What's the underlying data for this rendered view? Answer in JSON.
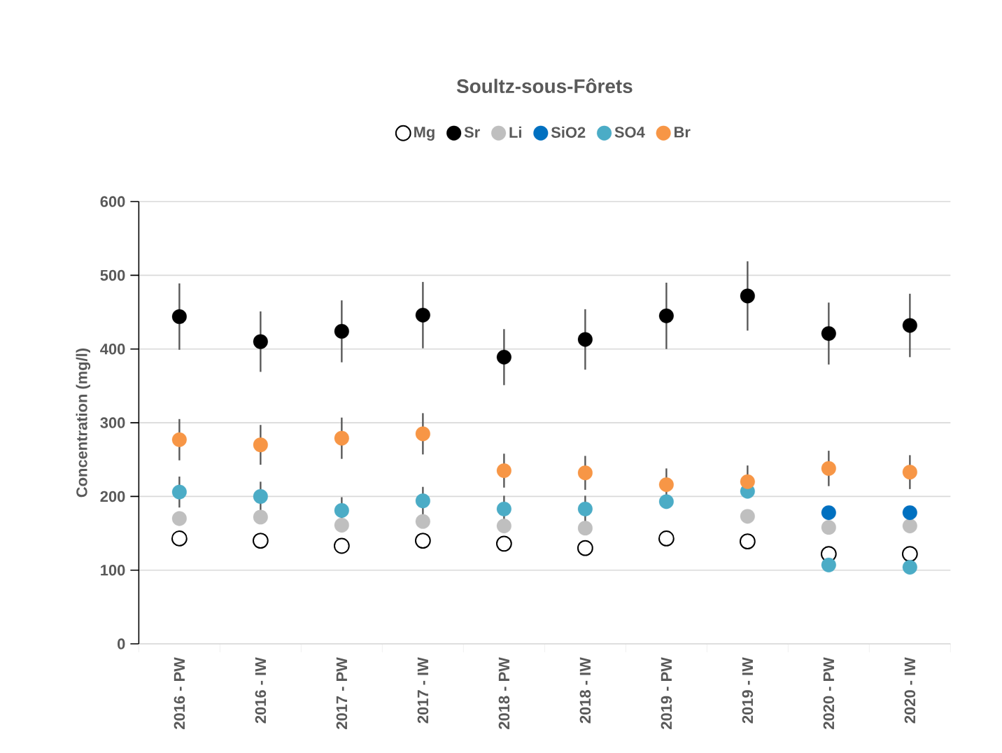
{
  "chart_data": {
    "type": "scatter",
    "title": "Soultz-sous-Fôrets",
    "ylabel": "Concentration (mg/l)",
    "categories": [
      "2016 - PW",
      "2016 - IW",
      "2017 - PW",
      "2017 - IW",
      "2018 - PW",
      "2018 - IW",
      "2019 - PW",
      "2019 - IW",
      "2020 - PW",
      "2020 - IW"
    ],
    "series": [
      {
        "name": "Mg",
        "color": "#000000",
        "marker": "open circle",
        "values": [
          143,
          140,
          133,
          140,
          136,
          130,
          143,
          139,
          122,
          122
        ]
      },
      {
        "name": "Sr",
        "color": "#000000",
        "values": [
          444,
          410,
          424,
          446,
          389,
          413,
          445,
          472,
          421,
          432
        ],
        "errors": [
          45,
          41,
          42,
          45,
          38,
          41,
          45,
          47,
          42,
          43
        ]
      },
      {
        "name": "Li",
        "color": "#bfbfbf",
        "values": [
          170,
          172,
          161,
          166,
          160,
          157,
          null,
          173,
          158,
          160
        ]
      },
      {
        "name": "SiO2",
        "color": "#0070c0",
        "values": [
          null,
          null,
          null,
          null,
          null,
          null,
          null,
          null,
          178,
          178
        ]
      },
      {
        "name": "SO4",
        "color": "#4bacc6",
        "values": [
          206,
          200,
          181,
          194,
          183,
          183,
          193,
          207,
          107,
          104
        ],
        "errors": [
          21,
          20,
          18,
          19,
          18,
          18,
          null,
          null,
          null,
          null
        ]
      },
      {
        "name": "Br",
        "color": "#f79646",
        "values": [
          277,
          270,
          279,
          285,
          235,
          232,
          216,
          220,
          238,
          233
        ],
        "errors": [
          28,
          27,
          28,
          28,
          23,
          23,
          22,
          22,
          24,
          23
        ]
      }
    ],
    "ylim": [
      0,
      600
    ],
    "yticks": [
      0,
      100,
      200,
      300,
      400,
      500,
      600
    ],
    "grid": "y",
    "legend": "top",
    "marker": "circle"
  }
}
